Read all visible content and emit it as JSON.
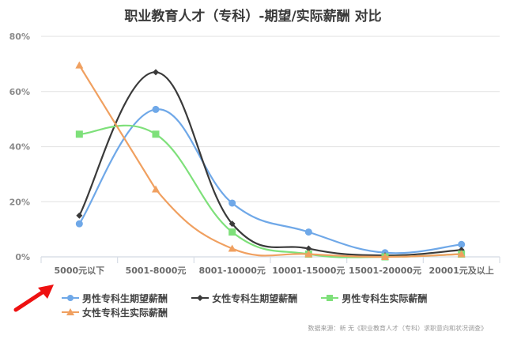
{
  "chart_data": {
    "type": "line",
    "title": "职业教育人才（专科）-期望/实际薪酬 对比",
    "xlabel": "",
    "ylabel": "",
    "ylim": [
      0,
      80
    ],
    "yticks": [
      "0%",
      "20%",
      "40%",
      "60%",
      "80%"
    ],
    "grid": true,
    "legend_position": "bottom",
    "categories": [
      "5000元以下",
      "5001-8000元",
      "8001-10000元",
      "10001-15000元",
      "15001-20000元",
      "20001元及以上"
    ],
    "series": [
      {
        "name": "男性专科生期望薪酬",
        "color": "#6fa8e8",
        "marker": "circle",
        "values": [
          12,
          53.5,
          19.5,
          9,
          1.5,
          4.5
        ]
      },
      {
        "name": "女性专科生期望薪酬",
        "color": "#3a3a3a",
        "marker": "diamond",
        "values": [
          15,
          67,
          12,
          3,
          0.5,
          2.5
        ]
      },
      {
        "name": "男性专科生实际薪酬",
        "color": "#7ee07a",
        "marker": "square",
        "values": [
          44.5,
          44.5,
          9,
          1,
          0,
          1
        ]
      },
      {
        "name": "女性专科生实际薪酬",
        "color": "#f0a060",
        "marker": "triangle",
        "values": [
          69.5,
          24.5,
          3,
          1,
          0,
          1
        ]
      }
    ],
    "annotations": [
      "red arrow pointing to 5000元以下 category"
    ]
  },
  "source_note": "数据来源：新   无《职业教育人才（专科）求职意向和状况调查》"
}
